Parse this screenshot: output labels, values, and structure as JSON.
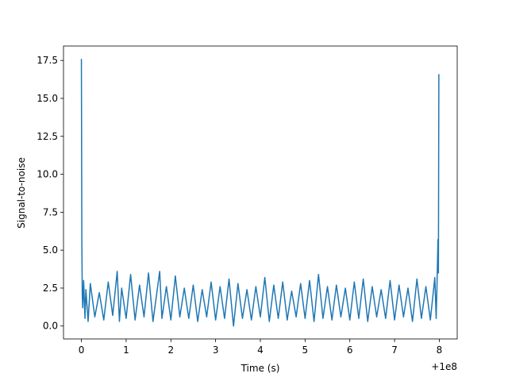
{
  "chart_data": {
    "type": "line",
    "xlabel": "Time (s)",
    "ylabel": "Signal-to-noise",
    "x_offset_label": "+1e8",
    "xlim": [
      -0.4,
      8.4
    ],
    "ylim": [
      -0.85,
      18.45
    ],
    "grid": false,
    "legend": "none",
    "color": "#1f77b4",
    "x_ticks": [
      0,
      1,
      2,
      3,
      4,
      5,
      6,
      7,
      8
    ],
    "x_tick_labels": [
      "0",
      "1",
      "2",
      "3",
      "4",
      "5",
      "6",
      "7",
      "8"
    ],
    "y_ticks": [
      0.0,
      2.5,
      5.0,
      7.5,
      10.0,
      12.5,
      15.0,
      17.5
    ],
    "y_tick_labels": [
      "0.0",
      "2.5",
      "5.0",
      "7.5",
      "10.0",
      "12.5",
      "15.0",
      "17.5"
    ],
    "series": [
      {
        "x": [
          0.0,
          0.01,
          0.02,
          0.03,
          0.05,
          0.08,
          0.1,
          0.15,
          0.2,
          0.3,
          0.4,
          0.5,
          0.6,
          0.7,
          0.8,
          0.85,
          0.9,
          1.0,
          1.1,
          1.2,
          1.3,
          1.4,
          1.5,
          1.6,
          1.75,
          1.8,
          1.9,
          2.0,
          2.1,
          2.2,
          2.3,
          2.4,
          2.5,
          2.6,
          2.7,
          2.8,
          2.9,
          3.0,
          3.1,
          3.2,
          3.3,
          3.4,
          3.5,
          3.6,
          3.7,
          3.8,
          3.9,
          4.0,
          4.1,
          4.2,
          4.3,
          4.4,
          4.5,
          4.6,
          4.7,
          4.8,
          4.9,
          5.0,
          5.1,
          5.2,
          5.3,
          5.4,
          5.5,
          5.6,
          5.7,
          5.8,
          5.9,
          6.0,
          6.1,
          6.2,
          6.3,
          6.4,
          6.5,
          6.6,
          6.7,
          6.8,
          6.9,
          7.0,
          7.1,
          7.2,
          7.3,
          7.4,
          7.5,
          7.6,
          7.7,
          7.8,
          7.9,
          7.93,
          7.95,
          7.97,
          7.98,
          7.99
        ],
        "y": [
          17.6,
          5.5,
          2.0,
          1.2,
          3.0,
          0.5,
          2.4,
          0.3,
          2.8,
          0.6,
          2.2,
          0.4,
          2.9,
          0.7,
          3.6,
          0.3,
          2.5,
          0.5,
          3.4,
          0.4,
          2.7,
          0.6,
          3.5,
          0.3,
          3.6,
          0.5,
          2.6,
          0.4,
          3.3,
          0.6,
          2.5,
          0.5,
          2.7,
          0.3,
          2.4,
          0.6,
          2.9,
          0.4,
          2.6,
          0.5,
          3.1,
          0.0,
          2.8,
          0.5,
          2.4,
          0.4,
          2.6,
          0.6,
          3.2,
          0.3,
          2.7,
          0.5,
          2.9,
          0.4,
          2.3,
          0.6,
          2.8,
          0.5,
          3.0,
          0.3,
          3.4,
          0.5,
          2.6,
          0.4,
          2.7,
          0.6,
          2.5,
          0.4,
          2.9,
          0.5,
          3.1,
          0.3,
          2.6,
          0.6,
          2.4,
          0.5,
          3.0,
          0.4,
          2.7,
          0.6,
          2.5,
          0.3,
          3.1,
          0.5,
          2.6,
          0.4,
          3.2,
          0.5,
          2.9,
          5.7,
          3.5,
          16.6
        ]
      }
    ]
  }
}
